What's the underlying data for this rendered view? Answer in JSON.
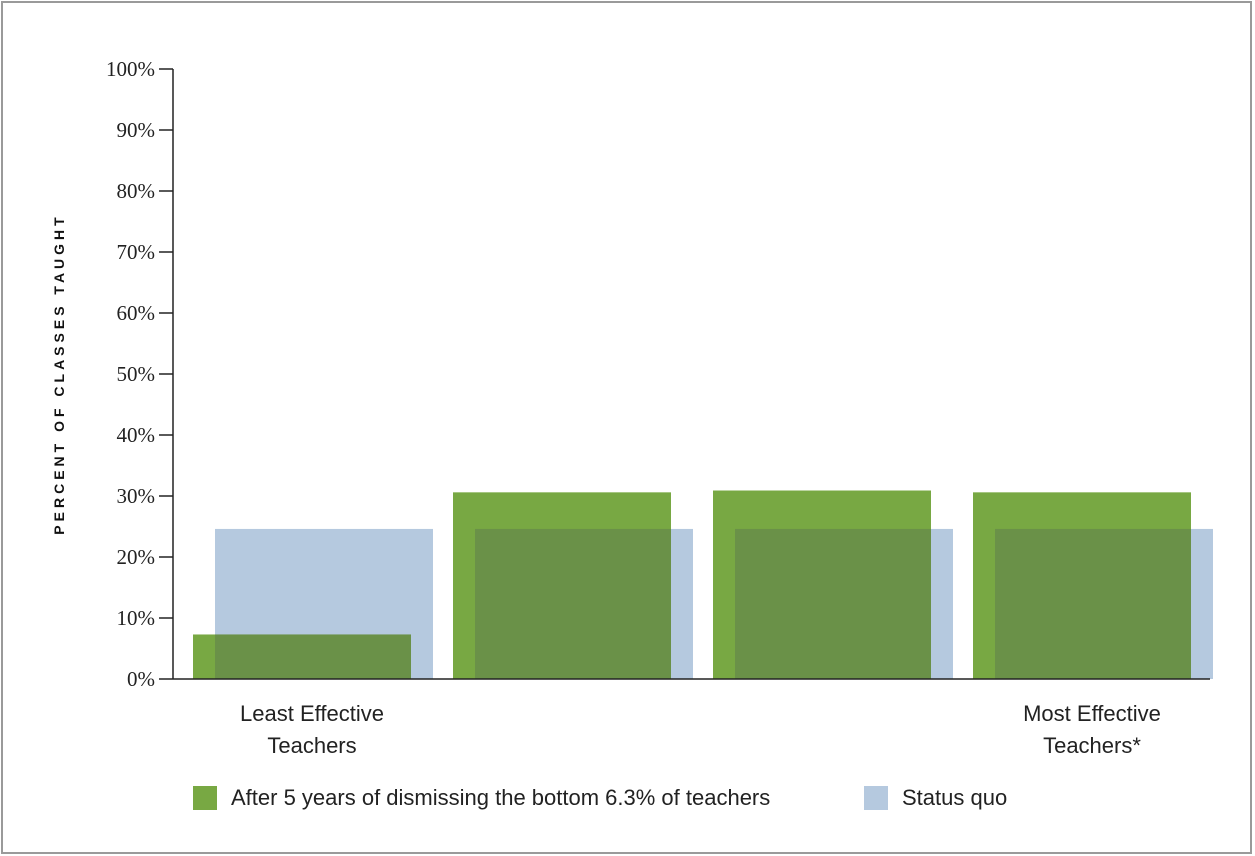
{
  "chart_data": {
    "type": "bar",
    "categories": [
      "Least Effective\nTeachers",
      "",
      "",
      "Most Effective\nTeachers*"
    ],
    "series": [
      {
        "name": "After 5 years of dismissing the bottom 6.3% of teachers",
        "values": [
          7.3,
          30.6,
          30.9,
          30.6
        ],
        "color": "#78a843"
      },
      {
        "name": "Status quo",
        "values": [
          24.6,
          24.6,
          24.6,
          24.6
        ],
        "color": "#b5c9df"
      }
    ],
    "overlap_color": "#6a9148",
    "ylabel": "PERCENT OF CLASSES TAUGHT",
    "ylim": [
      0,
      100
    ],
    "yticks": [
      "0%",
      "10%",
      "20%",
      "30%",
      "40%",
      "50%",
      "60%",
      "70%",
      "80%",
      "90%",
      "100%"
    ],
    "legend_position": "bottom",
    "grid": false
  }
}
